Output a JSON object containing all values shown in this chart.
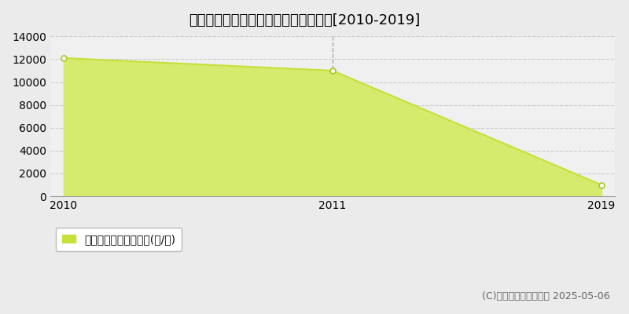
{
  "title": "中川郡幕別町忠類朝日　農地価格推移[2010-2019]",
  "x_labels": [
    "2010",
    "2011",
    "2019"
  ],
  "y_values": [
    12100,
    11000,
    1000
  ],
  "line_color": "#c8e03a",
  "fill_color": "#d4eb6e",
  "fill_alpha": 1.0,
  "marker_color": "#ffffff",
  "marker_edge_color": "#a8c820",
  "ylim": [
    0,
    14000
  ],
  "yticks": [
    0,
    2000,
    4000,
    6000,
    8000,
    10000,
    12000,
    14000
  ],
  "grid_color": "#cccccc",
  "bg_color": "#ebebeb",
  "plot_bg_color": "#f0f0f0",
  "legend_label": "農地価格　平均坪単価(円/坪)",
  "copyright_text": "(C)土地価格ドットコム 2025-05-06",
  "vline_idx": 1,
  "vline_color": "#aaaaaa",
  "title_fontsize": 13,
  "tick_fontsize": 10,
  "legend_fontsize": 10,
  "copyright_fontsize": 9
}
